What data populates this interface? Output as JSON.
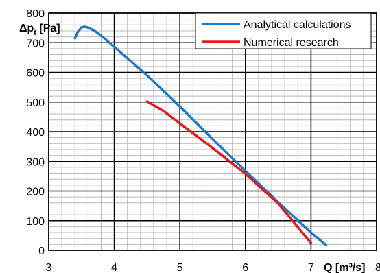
{
  "chart_data": {
    "type": "line",
    "title": "",
    "xlabel": "Q [m³/s]",
    "ylabel": {
      "main": "Δp",
      "sub": "t",
      "unit": " [Pa]"
    },
    "xlim": [
      3,
      8
    ],
    "ylim": [
      0,
      800
    ],
    "xticks": [
      3,
      4,
      5,
      6,
      7,
      8
    ],
    "yticks": [
      0,
      100,
      200,
      300,
      400,
      500,
      600,
      700,
      800
    ],
    "grid": "on",
    "legend_position": "top-right",
    "series": [
      {
        "name": "Analytical calculations",
        "color": "#1f77c7",
        "points": [
          [
            3.4,
            715
          ],
          [
            3.44,
            735
          ],
          [
            3.5,
            752
          ],
          [
            3.55,
            754
          ],
          [
            3.6,
            751
          ],
          [
            3.7,
            740
          ],
          [
            3.8,
            724
          ],
          [
            4.0,
            686
          ],
          [
            4.5,
            590
          ],
          [
            5.0,
            485
          ],
          [
            5.5,
            375
          ],
          [
            6.0,
            268
          ],
          [
            6.5,
            162
          ],
          [
            7.0,
            60
          ],
          [
            7.23,
            18
          ]
        ]
      },
      {
        "name": "Numerical research",
        "color": "#e31a1c",
        "points": [
          [
            4.5,
            502
          ],
          [
            4.75,
            470
          ],
          [
            5.0,
            428
          ],
          [
            5.5,
            345
          ],
          [
            6.0,
            258
          ],
          [
            6.5,
            158
          ],
          [
            7.0,
            25
          ]
        ]
      }
    ]
  }
}
